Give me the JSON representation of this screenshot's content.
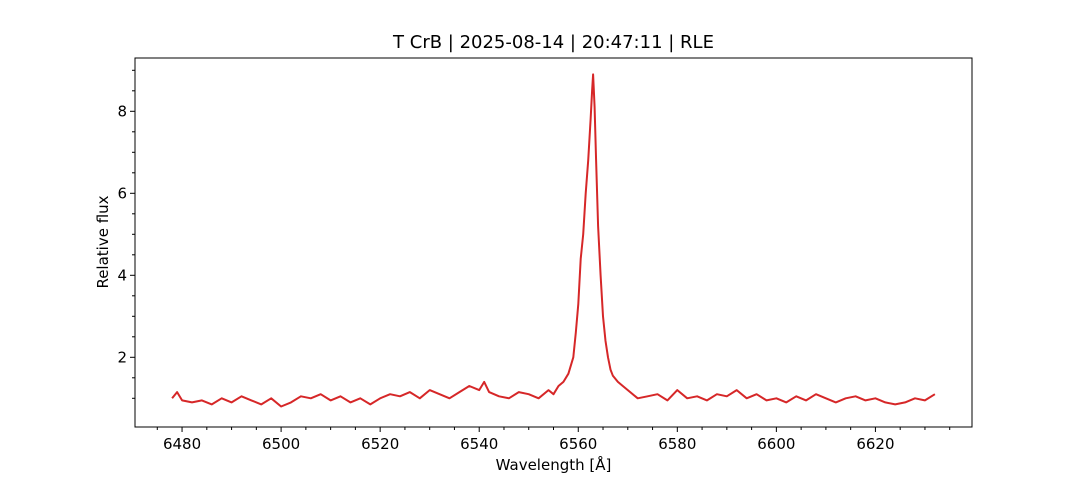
{
  "chart_data": {
    "type": "line",
    "title": "T CrB | 2025-08-14 | 20:47:11 | RLE",
    "xlabel": "Wavelength [Å]",
    "ylabel": "Relative flux",
    "xlim": [
      6470.5,
      6639.5
    ],
    "ylim": [
      0.3,
      9.3
    ],
    "x_ticks": [
      6480,
      6500,
      6520,
      6540,
      6560,
      6580,
      6600,
      6620
    ],
    "y_ticks": [
      2,
      4,
      6,
      8
    ],
    "grid": false,
    "line_color": "#d62728",
    "series": [
      {
        "x": [
          6478,
          6479,
          6480,
          6482,
          6484,
          6486,
          6488,
          6490,
          6492,
          6494,
          6496,
          6498,
          6500,
          6502,
          6504,
          6506,
          6508,
          6510,
          6512,
          6514,
          6516,
          6518,
          6520,
          6522,
          6524,
          6526,
          6528,
          6530,
          6532,
          6534,
          6536,
          6538,
          6540,
          6541,
          6542,
          6544,
          6546,
          6548,
          6550,
          6552,
          6554,
          6555,
          6556,
          6557,
          6558,
          6559,
          6559.5,
          6560,
          6560.5,
          6561,
          6561.5,
          6562,
          6562.5,
          6562.8,
          6563,
          6563.3,
          6563.6,
          6564,
          6564.5,
          6565,
          6565.5,
          6566,
          6566.5,
          6567,
          6568,
          6569,
          6570,
          6572,
          6574,
          6576,
          6578,
          6580,
          6582,
          6584,
          6586,
          6588,
          6590,
          6592,
          6594,
          6596,
          6598,
          6600,
          6602,
          6604,
          6606,
          6608,
          6610,
          6612,
          6614,
          6616,
          6618,
          6620,
          6622,
          6624,
          6626,
          6628,
          6630,
          6632
        ],
        "y": [
          1.0,
          1.15,
          0.95,
          0.9,
          0.95,
          0.85,
          1.0,
          0.9,
          1.05,
          0.95,
          0.85,
          1.0,
          0.8,
          0.9,
          1.05,
          1.0,
          1.1,
          0.95,
          1.05,
          0.9,
          1.0,
          0.85,
          1.0,
          1.1,
          1.05,
          1.15,
          1.0,
          1.2,
          1.1,
          1.0,
          1.15,
          1.3,
          1.2,
          1.4,
          1.15,
          1.05,
          1.0,
          1.15,
          1.1,
          1.0,
          1.2,
          1.1,
          1.3,
          1.4,
          1.6,
          2.0,
          2.6,
          3.3,
          4.4,
          5.0,
          6.0,
          6.8,
          7.8,
          8.5,
          8.9,
          8.1,
          6.8,
          5.2,
          4.0,
          3.0,
          2.4,
          2.0,
          1.7,
          1.55,
          1.4,
          1.3,
          1.2,
          1.0,
          1.05,
          1.1,
          0.95,
          1.2,
          1.0,
          1.05,
          0.95,
          1.1,
          1.05,
          1.2,
          1.0,
          1.1,
          0.95,
          1.0,
          0.9,
          1.05,
          0.95,
          1.1,
          1.0,
          0.9,
          1.0,
          1.05,
          0.95,
          1.0,
          0.9,
          0.85,
          0.9,
          1.0,
          0.95,
          1.1
        ]
      }
    ]
  }
}
